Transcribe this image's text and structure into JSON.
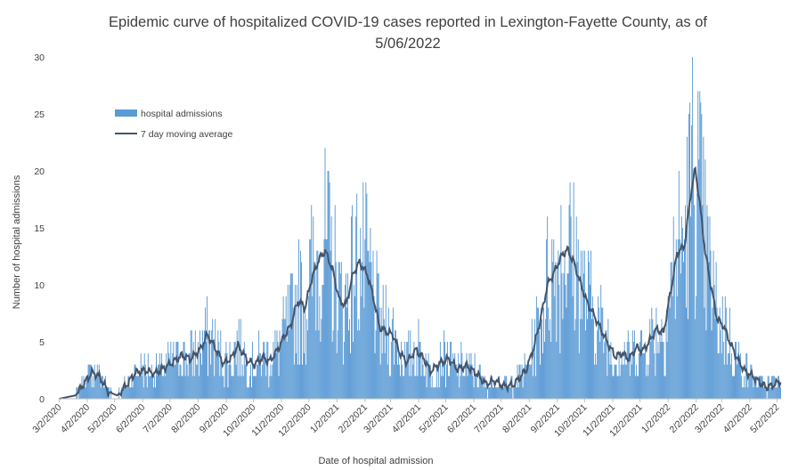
{
  "chart_data": {
    "type": "bar",
    "title_line1": "Epidemic curve of hospitalized COVID-19 cases reported in Lexington-Fayette County, as of",
    "title_line2": "5/06/2022",
    "xlabel": "Date of hospital admission",
    "ylabel": "Number of hospital admissions",
    "ylim": [
      0,
      30
    ],
    "yticks": [
      0,
      5,
      10,
      15,
      20,
      25,
      30
    ],
    "xlim": [
      "2020-03-02",
      "2022-05-06"
    ],
    "x_tick_labels": [
      "3/2/2020",
      "4/2/2020",
      "5/2/2020",
      "6/2/2020",
      "7/2/2020",
      "8/2/2020",
      "9/2/2020",
      "10/2/2020",
      "11/2/2020",
      "12/2/2020",
      "1/2/2021",
      "2/2/2021",
      "3/2/2021",
      "4/2/2021",
      "5/2/2021",
      "6/2/2021",
      "7/2/2021",
      "8/2/2021",
      "9/2/2021",
      "10/2/2021",
      "11/2/2021",
      "12/2/2021",
      "1/2/2022",
      "2/2/2022",
      "3/2/2022",
      "4/2/2022",
      "5/2/2022"
    ],
    "grid": false,
    "legend_position": "top-left",
    "series": [
      {
        "name": "hospital admissions",
        "kind": "bar",
        "color": "#5B9BD5"
      },
      {
        "name": "7 day moving average",
        "kind": "line",
        "color": "#44546A"
      }
    ],
    "seven_day_average_points": [
      [
        "2020-03-02",
        0
      ],
      [
        "2020-03-20",
        0.3
      ],
      [
        "2020-03-28",
        1.2
      ],
      [
        "2020-04-07",
        2.3
      ],
      [
        "2020-04-15",
        2.0
      ],
      [
        "2020-04-25",
        0.6
      ],
      [
        "2020-05-05",
        0.3
      ],
      [
        "2020-05-15",
        1.2
      ],
      [
        "2020-05-25",
        2.3
      ],
      [
        "2020-06-05",
        2.5
      ],
      [
        "2020-06-15",
        2.2
      ],
      [
        "2020-06-25",
        2.7
      ],
      [
        "2020-07-05",
        3.2
      ],
      [
        "2020-07-15",
        3.8
      ],
      [
        "2020-07-25",
        3.5
      ],
      [
        "2020-08-05",
        4.4
      ],
      [
        "2020-08-12",
        5.6
      ],
      [
        "2020-08-20",
        4.6
      ],
      [
        "2020-08-30",
        3.1
      ],
      [
        "2020-09-08",
        3.6
      ],
      [
        "2020-09-15",
        4.7
      ],
      [
        "2020-09-25",
        3.4
      ],
      [
        "2020-10-03",
        3.0
      ],
      [
        "2020-10-12",
        3.6
      ],
      [
        "2020-10-20",
        3.3
      ],
      [
        "2020-10-28",
        4.2
      ],
      [
        "2020-11-05",
        5.5
      ],
      [
        "2020-11-12",
        6.4
      ],
      [
        "2020-11-20",
        8.6
      ],
      [
        "2020-11-28",
        8.0
      ],
      [
        "2020-12-05",
        10.5
      ],
      [
        "2020-12-13",
        12.2
      ],
      [
        "2020-12-20",
        13.0
      ],
      [
        "2020-12-28",
        11.4
      ],
      [
        "2021-01-05",
        8.6
      ],
      [
        "2021-01-12",
        8.2
      ],
      [
        "2021-01-20",
        11.0
      ],
      [
        "2021-01-27",
        12.0
      ],
      [
        "2021-02-05",
        10.8
      ],
      [
        "2021-02-12",
        8.6
      ],
      [
        "2021-02-18",
        6.3
      ],
      [
        "2021-02-25",
        5.9
      ],
      [
        "2021-03-05",
        5.6
      ],
      [
        "2021-03-12",
        4.1
      ],
      [
        "2021-03-20",
        3.2
      ],
      [
        "2021-03-30",
        4.3
      ],
      [
        "2021-04-08",
        3.5
      ],
      [
        "2021-04-15",
        2.4
      ],
      [
        "2021-04-25",
        3.1
      ],
      [
        "2021-05-05",
        3.5
      ],
      [
        "2021-05-15",
        2.6
      ],
      [
        "2021-05-25",
        2.9
      ],
      [
        "2021-06-05",
        2.2
      ],
      [
        "2021-06-15",
        1.3
      ],
      [
        "2021-06-25",
        1.6
      ],
      [
        "2021-07-05",
        1.1
      ],
      [
        "2021-07-15",
        1.2
      ],
      [
        "2021-07-22",
        1.8
      ],
      [
        "2021-07-30",
        2.6
      ],
      [
        "2021-08-07",
        4.5
      ],
      [
        "2021-08-15",
        7.2
      ],
      [
        "2021-08-22",
        10.0
      ],
      [
        "2021-08-30",
        11.2
      ],
      [
        "2021-09-07",
        12.6
      ],
      [
        "2021-09-13",
        13.1
      ],
      [
        "2021-09-20",
        12.0
      ],
      [
        "2021-09-28",
        10.0
      ],
      [
        "2021-10-05",
        8.4
      ],
      [
        "2021-10-12",
        7.4
      ],
      [
        "2021-10-20",
        6.1
      ],
      [
        "2021-10-28",
        4.8
      ],
      [
        "2021-11-05",
        3.7
      ],
      [
        "2021-11-12",
        4.0
      ],
      [
        "2021-11-20",
        3.5
      ],
      [
        "2021-11-28",
        4.5
      ],
      [
        "2021-12-05",
        4.2
      ],
      [
        "2021-12-12",
        5.0
      ],
      [
        "2021-12-20",
        6.1
      ],
      [
        "2021-12-28",
        5.8
      ],
      [
        "2022-01-05",
        9.5
      ],
      [
        "2022-01-12",
        12.8
      ],
      [
        "2022-01-20",
        13.4
      ],
      [
        "2022-01-27",
        18.0
      ],
      [
        "2022-02-01",
        20.2
      ],
      [
        "2022-02-06",
        17.0
      ],
      [
        "2022-02-12",
        12.8
      ],
      [
        "2022-02-18",
        10.0
      ],
      [
        "2022-02-25",
        7.0
      ],
      [
        "2022-03-04",
        6.4
      ],
      [
        "2022-03-12",
        4.8
      ],
      [
        "2022-03-20",
        3.4
      ],
      [
        "2022-03-28",
        2.4
      ],
      [
        "2022-04-05",
        2.0
      ],
      [
        "2022-04-12",
        1.5
      ],
      [
        "2022-04-20",
        1.0
      ],
      [
        "2022-04-28",
        1.2
      ],
      [
        "2022-05-06",
        1.6
      ]
    ]
  }
}
